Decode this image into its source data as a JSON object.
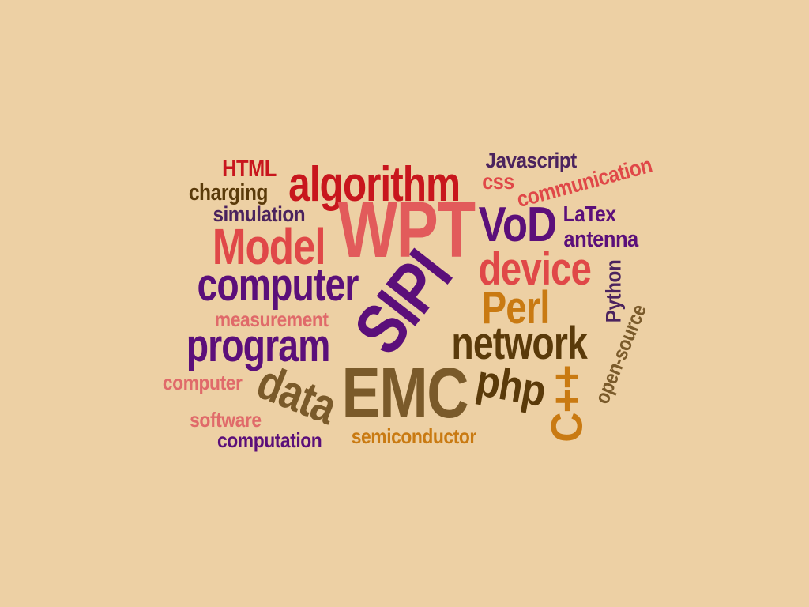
{
  "background": "#EDD0A4",
  "palette": {
    "red": "#C8161D",
    "salmon": "#E25B5B",
    "coral": "#E04848",
    "purple": "#5B0F7A",
    "dark_purple": "#4B235E",
    "brown": "#5A3A0A",
    "olive_brown": "#7A5A2A",
    "orange": "#C97A12",
    "pink": "#E06A6A"
  },
  "words": [
    {
      "text": "HTML",
      "color": "#C8161D"
    },
    {
      "text": "algorithm",
      "color": "#C8161D"
    },
    {
      "text": "Javascript",
      "color": "#4B235E"
    },
    {
      "text": "css",
      "color": "#E04848"
    },
    {
      "text": "communication",
      "color": "#E04848"
    },
    {
      "text": "charging",
      "color": "#5A3A0A"
    },
    {
      "text": "simulation",
      "color": "#4B235E"
    },
    {
      "text": "WPT",
      "color": "#E25B5B"
    },
    {
      "text": "VoD",
      "color": "#5B0F7A"
    },
    {
      "text": "LaTex",
      "color": "#5B0F7A"
    },
    {
      "text": "antenna",
      "color": "#5B0F7A"
    },
    {
      "text": "Model",
      "color": "#E04848"
    },
    {
      "text": "device",
      "color": "#E04848"
    },
    {
      "text": "Python",
      "color": "#4B235E"
    },
    {
      "text": "computer",
      "color": "#5B0F7A"
    },
    {
      "text": "SIPI",
      "color": "#5B0F7A"
    },
    {
      "text": "Perl",
      "color": "#C97A12"
    },
    {
      "text": "open-source",
      "color": "#7A5A2A"
    },
    {
      "text": "measurement",
      "color": "#E06A6A"
    },
    {
      "text": "program",
      "color": "#5B0F7A"
    },
    {
      "text": "network",
      "color": "#5A3A0A"
    },
    {
      "text": "computer",
      "color": "#E06A6A"
    },
    {
      "text": "data",
      "color": "#7A5A2A"
    },
    {
      "text": "EMC",
      "color": "#7A5A2A"
    },
    {
      "text": "php",
      "color": "#5A3A0A"
    },
    {
      "text": "C++",
      "color": "#C97A12"
    },
    {
      "text": "software",
      "color": "#E06A6A"
    },
    {
      "text": "computation",
      "color": "#5B0F7A"
    },
    {
      "text": "semiconductor",
      "color": "#C97A12"
    }
  ]
}
